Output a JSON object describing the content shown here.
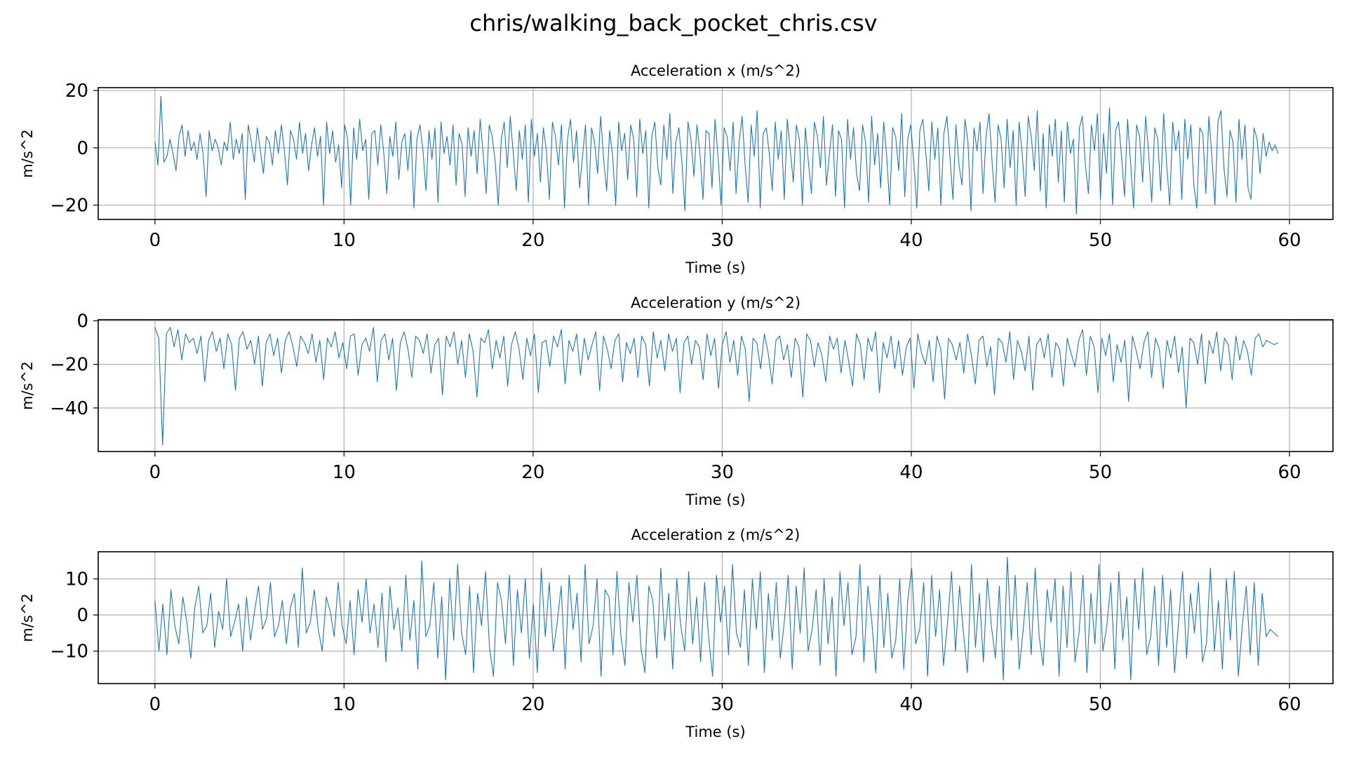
{
  "figure": {
    "title": "chris/walking_back_pocket_chris.csv"
  },
  "colors": {
    "line": "#1f77b4",
    "grid": "#b0b0b0",
    "axes": "#000000"
  },
  "chart_data": [
    {
      "type": "line",
      "title": "Acceleration x (m/s^2)",
      "xlabel": "Time (s)",
      "ylabel": "m/s^2",
      "xlim": [
        -3,
        62.3
      ],
      "ylim": [
        -25,
        21
      ],
      "xticks": [
        0,
        10,
        20,
        30,
        40,
        50,
        60
      ],
      "yticks": [
        -20,
        0,
        20
      ],
      "grid": true,
      "series": [
        {
          "x_start": 0.0,
          "x_end": 59.4,
          "samples": [
            2,
            -6,
            18,
            -5,
            -3,
            3,
            -2,
            -8,
            4,
            8,
            -3,
            6,
            -1,
            2,
            -4,
            5,
            -2,
            -17,
            6,
            -1,
            3,
            0,
            -6,
            2,
            -1,
            9,
            -4,
            3,
            -2,
            5,
            -18,
            8,
            2,
            -5,
            7,
            -1,
            -9,
            4,
            2,
            -6,
            6,
            -2,
            8,
            -1,
            -13,
            6,
            3,
            -4,
            9,
            -2,
            5,
            -8,
            1,
            7,
            -3,
            4,
            -20,
            9,
            -2,
            6,
            -5,
            1,
            -14,
            8,
            3,
            -20,
            7,
            -4,
            10,
            -1,
            3,
            -18,
            5,
            6,
            -6,
            8,
            -2,
            -16,
            4,
            -3,
            9,
            -11,
            2,
            5,
            -8,
            6,
            -21,
            3,
            8,
            -1,
            -15,
            6,
            -4,
            7,
            -19,
            9,
            -2,
            4,
            -6,
            8,
            -13,
            5,
            1,
            -17,
            7,
            -3,
            6,
            -9,
            10,
            -2,
            -16,
            8,
            4,
            -5,
            -20,
            3,
            9,
            -7,
            11,
            -2,
            -15,
            6,
            -4,
            8,
            -19,
            10,
            -3,
            5,
            -12,
            7,
            -1,
            -18,
            9,
            4,
            -6,
            8,
            -21,
            3,
            10,
            -5,
            6,
            -14,
            -3,
            8,
            -20,
            7,
            2,
            -9,
            11,
            -4,
            -15,
            6,
            -3,
            -20,
            9,
            -1,
            5,
            -11,
            8,
            3,
            -17,
            10,
            -2,
            6,
            -21,
            4,
            9,
            -7,
            -13,
            8,
            -4,
            12,
            -16,
            2,
            7,
            -5,
            -22,
            9,
            3,
            -10,
            8,
            -2,
            -18,
            6,
            5,
            -14,
            10,
            -3,
            -20,
            7,
            4,
            -8,
            9,
            -16,
            2,
            11,
            -6,
            -19,
            8,
            -3,
            13,
            -21,
            5,
            7,
            -2,
            -15,
            9,
            -4,
            6,
            -18,
            10,
            -1,
            -12,
            8,
            3,
            -20,
            7,
            -5,
            -16,
            9,
            4,
            -7,
            11,
            -13,
            -2,
            8,
            -17,
            6,
            3,
            -21,
            10,
            -4,
            7,
            -9,
            -15,
            8,
            2,
            -19,
            11,
            -6,
            5,
            -14,
            9,
            -3,
            -20,
            7,
            4,
            -8,
            12,
            -17,
            3,
            8,
            -5,
            -21,
            6,
            10,
            -2,
            -15,
            9,
            -4,
            7,
            -20,
            5,
            11,
            -3,
            -18,
            8,
            -6,
            -13,
            10,
            2,
            -22,
            7,
            -1,
            9,
            -16,
            4,
            12,
            -5,
            -19,
            8,
            3,
            -14,
            10,
            -7,
            6,
            -20,
            9,
            -2,
            -17,
            11,
            4,
            -8,
            13,
            -15,
            5,
            -21,
            8,
            -3,
            10,
            -12,
            6,
            -19,
            9,
            -2,
            3,
            -23,
            7,
            11,
            -6,
            -16,
            8,
            -1,
            12,
            -18,
            5,
            -9,
            14,
            -20,
            6,
            9,
            -3,
            -17,
            10,
            -5,
            -21,
            8,
            4,
            -12,
            11,
            -2,
            -19,
            7,
            3,
            -15,
            12,
            -6,
            -20,
            9,
            -1,
            6,
            -18,
            10,
            -4,
            8,
            -13,
            -21,
            7,
            5,
            -16,
            11,
            -3,
            -20,
            9,
            13,
            -7,
            -17,
            6,
            2,
            -19,
            10,
            -4,
            8,
            -14,
            -18,
            7,
            3,
            -9,
            5,
            -3,
            2,
            -1,
            1,
            -2
          ]
        }
      ]
    },
    {
      "type": "line",
      "title": "Acceleration y (m/s^2)",
      "xlabel": "Time (s)",
      "ylabel": "m/s^2",
      "xlim": [
        -3,
        62.3
      ],
      "ylim": [
        -60,
        0.5
      ],
      "xticks": [
        0,
        10,
        20,
        30,
        40,
        50,
        60
      ],
      "yticks": [
        -40,
        -20,
        0
      ],
      "grid": true,
      "series": [
        {
          "x_start": 0.0,
          "x_end": 59.4,
          "samples": [
            -3,
            -8,
            -57,
            -6,
            -3,
            -12,
            -4,
            -18,
            -6,
            -10,
            -8,
            -15,
            -7,
            -28,
            -9,
            -5,
            -14,
            -8,
            -22,
            -6,
            -11,
            -32,
            -8,
            -5,
            -13,
            -9,
            -20,
            -7,
            -30,
            -10,
            -6,
            -16,
            -8,
            -24,
            -9,
            -5,
            -12,
            -21,
            -7,
            -10,
            -15,
            -6,
            -19,
            -9,
            -27,
            -8,
            -12,
            -5,
            -17,
            -10,
            -22,
            -7,
            -6,
            -25,
            -11,
            -8,
            -14,
            -3,
            -28,
            -9,
            -6,
            -18,
            -8,
            -32,
            -10,
            -5,
            -13,
            -26,
            -7,
            -9,
            -15,
            -6,
            -24,
            -11,
            -8,
            -34,
            -7,
            -12,
            -5,
            -20,
            -9,
            -26,
            -6,
            -14,
            -35,
            -8,
            -10,
            -4,
            -22,
            -9,
            -17,
            -7,
            -30,
            -11,
            -5,
            -13,
            -27,
            -8,
            -16,
            -6,
            -33,
            -10,
            -9,
            -21,
            -7,
            -12,
            -4,
            -29,
            -9,
            -14,
            -6,
            -25,
            -8,
            -18,
            -11,
            -5,
            -32,
            -7,
            -13,
            -22,
            -9,
            -6,
            -28,
            -10,
            -15,
            -8,
            -26,
            -7,
            -11,
            -30,
            -5,
            -17,
            -9,
            -23,
            -6,
            -14,
            -8,
            -33,
            -10,
            -7,
            -20,
            -9,
            -12,
            -27,
            -6,
            -16,
            -8,
            -31,
            -11,
            -5,
            -19,
            -9,
            -25,
            -7,
            -13,
            -37,
            -8,
            -10,
            -22,
            -6,
            -15,
            -29,
            -9,
            -7,
            -18,
            -11,
            -26,
            -8,
            -12,
            -35,
            -6,
            -9,
            -21,
            -10,
            -16,
            -28,
            -7,
            -13,
            -8,
            -24,
            -9,
            -19,
            -30,
            -6,
            -11,
            -27,
            -8,
            -14,
            -5,
            -33,
            -10,
            -17,
            -7,
            -22,
            -9,
            -25,
            -12,
            -8,
            -31,
            -6,
            -15,
            -20,
            -9,
            -28,
            -7,
            -13,
            -36,
            -8,
            -11,
            -18,
            -10,
            -24,
            -6,
            -16,
            -29,
            -9,
            -7,
            -21,
            -12,
            -34,
            -8,
            -10,
            -19,
            -5,
            -27,
            -9,
            -14,
            -23,
            -7,
            -32,
            -11,
            -8,
            -17,
            -6,
            -26,
            -10,
            -13,
            -30,
            -8,
            -15,
            -21,
            -9,
            -4,
            -25,
            -7,
            -12,
            -33,
            -8,
            -16,
            -6,
            -28,
            -11,
            -19,
            -9,
            -37,
            -7,
            -14,
            -22,
            -10,
            -5,
            -26,
            -8,
            -13,
            -31,
            -9,
            -17,
            -7,
            -24,
            -12,
            -40,
            -8,
            -10,
            -20,
            -6,
            -29,
            -9,
            -15,
            -5,
            -23,
            -8,
            -11,
            -27,
            -7,
            -18,
            -9,
            -14,
            -25,
            -8,
            -6,
            -12,
            -9,
            -10,
            -11,
            -10
          ]
        }
      ]
    },
    {
      "type": "line",
      "title": "Acceleration z (m/s^2)",
      "xlabel": "Time (s)",
      "ylabel": "m/s^2",
      "xlim": [
        -3,
        62.3
      ],
      "ylim": [
        -19,
        17.5
      ],
      "xticks": [
        0,
        10,
        20,
        30,
        40,
        50,
        60
      ],
      "yticks": [
        -10,
        0,
        10
      ],
      "grid": true,
      "series": [
        {
          "x_start": 0.0,
          "x_end": 59.4,
          "samples": [
            4,
            -10,
            3,
            -11,
            7,
            -3,
            -8,
            5,
            -2,
            -12,
            2,
            8,
            -5,
            -3,
            6,
            -9,
            1,
            -4,
            10,
            -6,
            -2,
            3,
            -10,
            5,
            -7,
            1,
            8,
            -4,
            -1,
            9,
            -6,
            -3,
            4,
            -8,
            2,
            6,
            -9,
            13,
            -5,
            -2,
            7,
            -4,
            -10,
            5,
            1,
            -6,
            9,
            -3,
            -8,
            4,
            -11,
            7,
            -2,
            10,
            -5,
            3,
            -9,
            6,
            -13,
            8,
            -4,
            2,
            -10,
            11,
            -7,
            4,
            -15,
            15,
            -6,
            -3,
            9,
            -12,
            5,
            -18,
            10,
            -7,
            14,
            -5,
            -11,
            8,
            -16,
            6,
            -3,
            12,
            -9,
            -17,
            9,
            4,
            -8,
            11,
            -14,
            7,
            -5,
            10,
            -12,
            3,
            -16,
            13,
            -6,
            9,
            -10,
            -2,
            8,
            -15,
            11,
            -4,
            6,
            -13,
            14,
            -8,
            -3,
            10,
            -17,
            7,
            5,
            -11,
            12,
            -6,
            -14,
            9,
            -2,
            11,
            -9,
            -16,
            8,
            4,
            -12,
            13,
            -7,
            6,
            -15,
            10,
            -3,
            -10,
            12,
            -8,
            5,
            -13,
            9,
            -6,
            -17,
            11,
            -2,
            8,
            -11,
            14,
            -5,
            -9,
            7,
            -14,
            10,
            -4,
            12,
            -16,
            6,
            -7,
            9,
            -12,
            -2,
            11,
            -15,
            8,
            -5,
            13,
            -10,
            -4,
            7,
            -14,
            10,
            -8,
            5,
            -17,
            12,
            -3,
            9,
            -11,
            -6,
            14,
            -13,
            8,
            -2,
            -16,
            11,
            -9,
            6,
            -12,
            -7,
            10,
            -15,
            4,
            13,
            -8,
            -4,
            9,
            -17,
            11,
            -6,
            7,
            -14,
            -2,
            12,
            -10,
            8,
            -5,
            -16,
            14,
            -9,
            6,
            -13,
            10,
            -3,
            -12,
            8,
            -18,
            16,
            -7,
            11,
            -15,
            -4,
            9,
            -11,
            13,
            -6,
            -14,
            7,
            -2,
            10,
            -17,
            8,
            -9,
            12,
            -13,
            -5,
            11,
            -16,
            6,
            -8,
            14,
            -10,
            -3,
            9,
            -15,
            12,
            -7,
            5,
            -18,
            10,
            -4,
            13,
            -11,
            -6,
            8,
            -14,
            11,
            -9,
            7,
            -16,
            -2,
            12,
            -12,
            6,
            -5,
            9,
            -13,
            -8,
            13,
            -10,
            4,
            -15,
            10,
            -7,
            12,
            -17,
            -3,
            8,
            -11,
            9,
            -14,
            6,
            -6,
            -4,
            -5,
            -6
          ]
        }
      ]
    }
  ]
}
